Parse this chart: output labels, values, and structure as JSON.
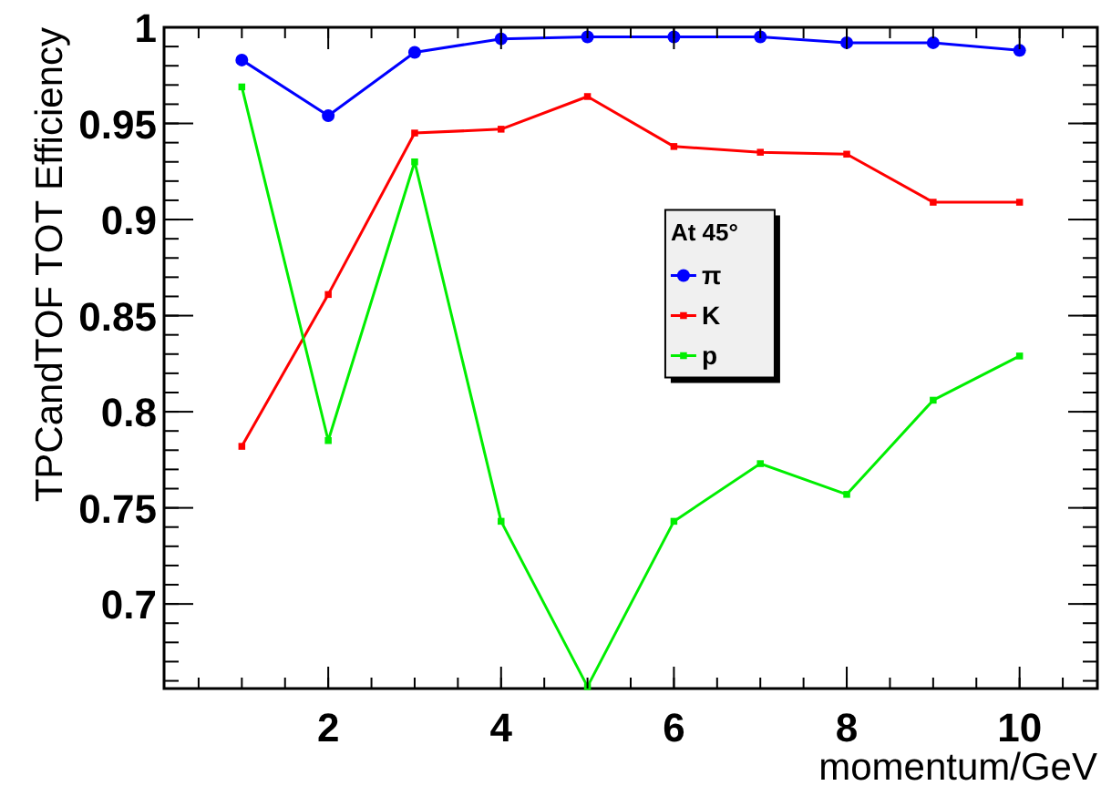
{
  "chart_data": {
    "type": "line",
    "xlabel": "momentum/GeV",
    "ylabel": "TPCandTOF TOT Efficiency",
    "legend_title": "At 45°",
    "x": [
      1,
      2,
      3,
      4,
      5,
      6,
      7,
      8,
      9,
      10
    ],
    "series": [
      {
        "name": "π",
        "color": "#0000ff",
        "marker": "circle",
        "values": [
          0.983,
          0.954,
          0.987,
          0.994,
          0.995,
          0.995,
          0.995,
          0.992,
          0.992,
          0.988
        ]
      },
      {
        "name": "K",
        "color": "#ff0000",
        "marker": "square",
        "values": [
          0.782,
          0.861,
          0.945,
          0.947,
          0.964,
          0.938,
          0.935,
          0.934,
          0.909,
          0.909
        ]
      },
      {
        "name": "p",
        "color": "#00ee00",
        "marker": "square",
        "values": [
          0.969,
          0.785,
          0.93,
          0.743,
          0.657,
          0.743,
          0.773,
          0.757,
          0.806,
          0.829
        ]
      }
    ],
    "xlim": [
      0.1,
      10.9
    ],
    "ylim": [
      0.656,
      1
    ],
    "xticks": [
      2,
      4,
      6,
      8,
      10
    ],
    "yticks": [
      0.7,
      0.75,
      0.8,
      0.85,
      0.9,
      0.95,
      1
    ],
    "grid": false,
    "legend": "right",
    "line_style": "solid"
  }
}
